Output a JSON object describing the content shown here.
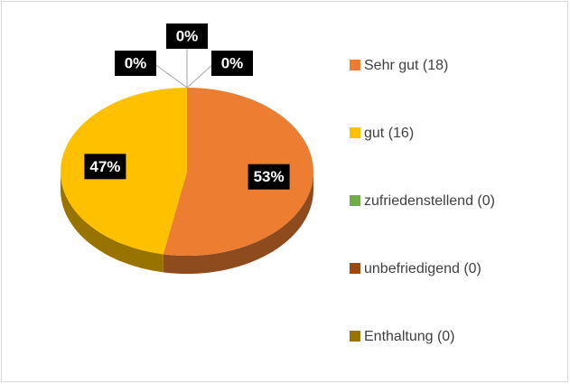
{
  "chart_data": {
    "type": "pie",
    "categories": [
      "Sehr gut (18)",
      "gut (16)",
      "zufriedenstellend (0)",
      "unbefriedigend (0)",
      "Enthaltung (0)"
    ],
    "values": [
      53,
      47,
      0,
      0,
      0
    ],
    "value_labels": [
      "53%",
      "47%",
      "0%",
      "0%",
      "0%"
    ],
    "colors": [
      "#ED7D31",
      "#FFC000",
      "#70AD47",
      "#9E480E",
      "#997300"
    ],
    "legend": "right"
  }
}
